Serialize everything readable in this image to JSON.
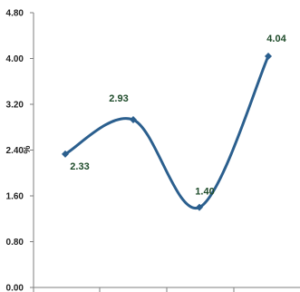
{
  "chart_data": {
    "type": "line",
    "title": "",
    "xlabel": "",
    "ylabel": "%",
    "ylim": [
      0,
      4.8
    ],
    "yticks": [
      "0.00",
      "0.80",
      "1.60",
      "2.40",
      "3.20",
      "4.00",
      "4.80"
    ],
    "grid": false,
    "smooth": true,
    "series": [
      {
        "values": [
          2.33,
          2.93,
          1.4,
          4.04
        ],
        "labels": [
          "2.33",
          "2.93",
          "1.40",
          "4.04"
        ]
      }
    ],
    "colors": {
      "line": "#2b5f8e",
      "marker": "#2b5f8e",
      "axis": "#7f7f7f",
      "data_label": "#1e4b2a"
    }
  }
}
